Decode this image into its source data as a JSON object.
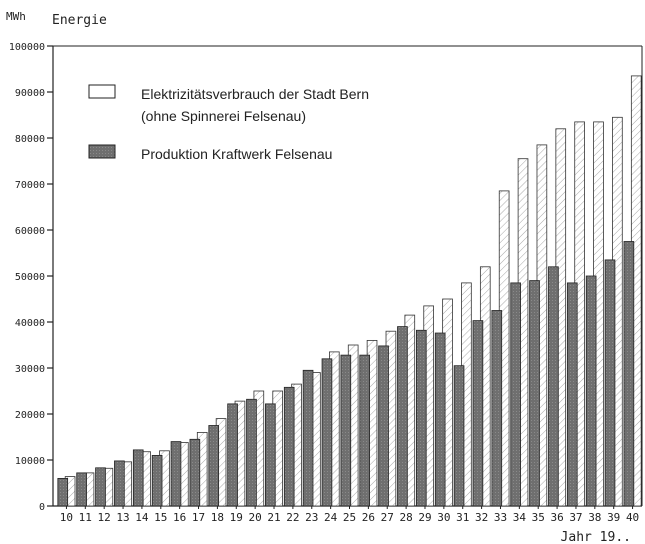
{
  "chart_data": {
    "type": "bar",
    "unit_label": "MWh",
    "ylabel": "Energie",
    "xlabel": "Jahr 19..",
    "ylim": [
      0,
      100000
    ],
    "yticks": [
      0,
      10000,
      20000,
      30000,
      40000,
      50000,
      60000,
      70000,
      80000,
      90000,
      100000
    ],
    "grid": false,
    "legend_position": "top-left",
    "categories": [
      "10",
      "11",
      "12",
      "13",
      "14",
      "15",
      "16",
      "17",
      "18",
      "19",
      "20",
      "21",
      "22",
      "23",
      "24",
      "25",
      "26",
      "27",
      "28",
      "29",
      "30",
      "31",
      "32",
      "33",
      "34",
      "35",
      "36",
      "37",
      "38",
      "39",
      "40"
    ],
    "series": [
      {
        "name": "Elektrizitätsverbrauch der Stadt Bern (ohne Spinnerei Felsenau)",
        "legend_lines": [
          "Elektrizitätsverbrauch der Stadt Bern",
          "(ohne Spinnerei Felsenau)"
        ],
        "style": "hatched-light",
        "values": [
          6400,
          7200,
          8200,
          9600,
          11800,
          12000,
          13800,
          16000,
          19000,
          22800,
          25000,
          25000,
          26500,
          29000,
          33500,
          35000,
          36000,
          38000,
          41500,
          43500,
          45000,
          48500,
          52000,
          68500,
          75500,
          78500,
          82000,
          83500,
          83500,
          84500,
          93500
        ]
      },
      {
        "name": "Produktion Kraftwerk Felsenau",
        "legend_lines": [
          "Produktion Kraftwerk Felsenau"
        ],
        "style": "dark-gray",
        "values": [
          6000,
          7200,
          8300,
          9800,
          12200,
          11000,
          14000,
          14500,
          17500,
          22200,
          23200,
          22200,
          25800,
          29500,
          32000,
          32800,
          32800,
          34800,
          39000,
          38200,
          37600,
          30500,
          40300,
          42500,
          48500,
          49000,
          52000,
          48500,
          50000,
          53500,
          57500
        ]
      }
    ]
  },
  "colors": {
    "dark_fill": "#6f6f6f",
    "light_fill": "#ffffff",
    "hatch": "#a8a8a8",
    "ink": "#222222"
  }
}
